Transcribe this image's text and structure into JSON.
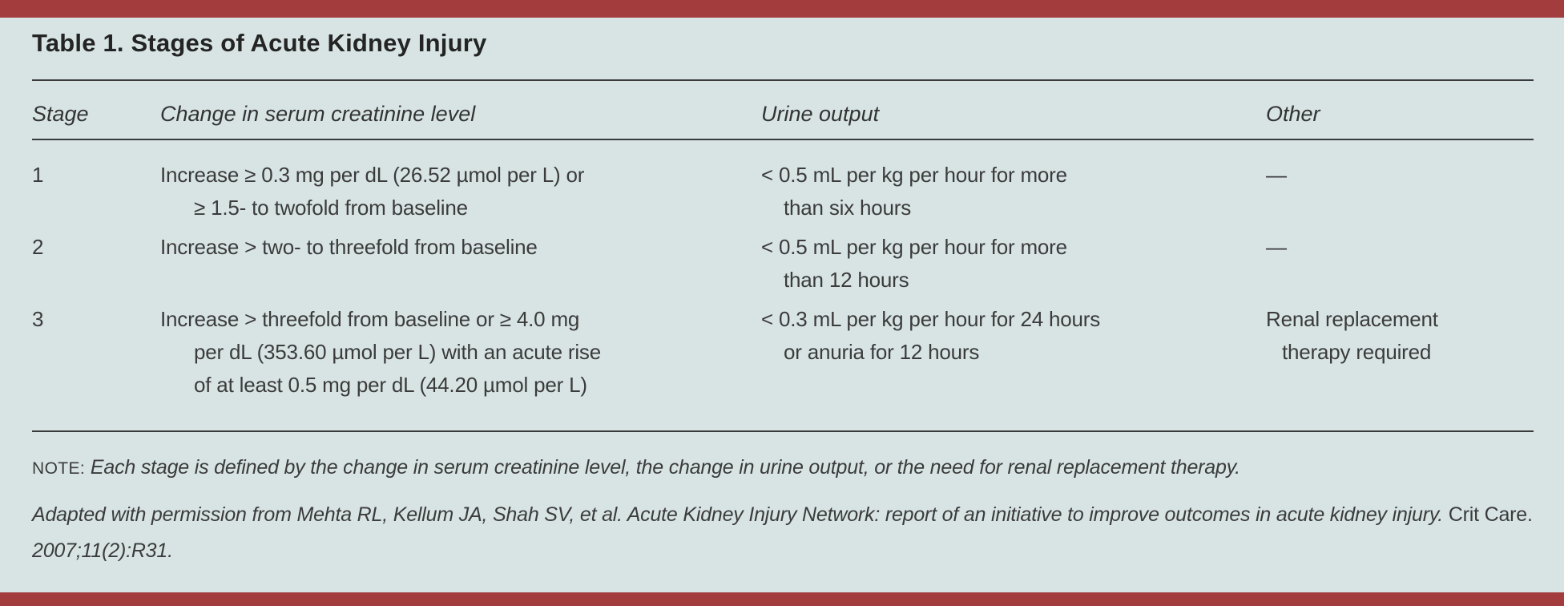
{
  "page": {
    "background_color": "#D8E4E4",
    "bar_color": "#A33C3C",
    "rule_color": "#3A3A3A",
    "text_color": "#3B3B3B"
  },
  "title": "Table 1. Stages of Acute Kidney Injury",
  "table": {
    "columns": [
      "Stage",
      "Change in serum creatinine level",
      "Urine output",
      "Other"
    ],
    "rows": [
      {
        "stage": "1",
        "creatinine": [
          "Increase ≥ 0.3 mg per dL (26.52 µmol per L) or",
          "≥ 1.5- to twofold from baseline"
        ],
        "urine": [
          "< 0.5 mL per kg per hour for more",
          "than six hours"
        ],
        "other": [
          "—"
        ]
      },
      {
        "stage": "2",
        "creatinine": [
          "Increase > two- to threefold from baseline"
        ],
        "urine": [
          "< 0.5 mL per kg per hour for more",
          "than 12 hours"
        ],
        "other": [
          "—"
        ]
      },
      {
        "stage": "3",
        "creatinine": [
          "Increase > threefold from baseline or ≥ 4.0 mg",
          "per dL (353.60 µmol per L) with an acute rise",
          "of at least 0.5 mg per dL (44.20 µmol per L)"
        ],
        "urine": [
          "< 0.3 mL per kg per hour for 24 hours",
          "or anuria for 12 hours"
        ],
        "other": [
          "Renal replacement",
          "therapy required"
        ]
      }
    ]
  },
  "footnotes": {
    "note_label": "NOTE:",
    "note_text": "Each stage is defined by the change in serum creatinine level, the change in urine output, or the need for renal replacement therapy.",
    "citation_before_journal": "Adapted with permission from Mehta RL, Kellum JA, Shah SV, et al. Acute Kidney Injury Network: report of an initiative to improve outcomes in acute kidney injury. ",
    "citation_journal": "Crit Care. ",
    "citation_after_journal": "2007;11(2):R31."
  }
}
